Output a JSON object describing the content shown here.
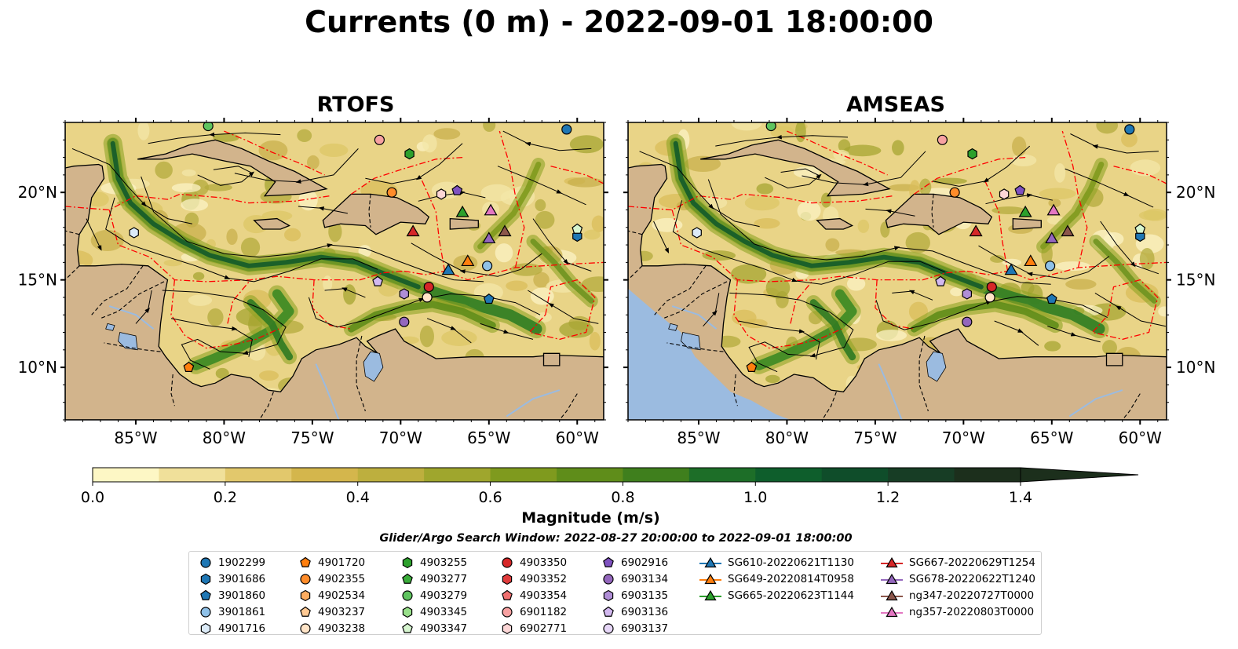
{
  "title": "Currents (0 m) - 2022-09-01 18:00:00",
  "panels": [
    {
      "title": "RTOFS",
      "lon_ticks": [
        "85°W",
        "80°W",
        "75°W",
        "70°W",
        "65°W",
        "60°W"
      ],
      "lat_ticks": [
        "20°N",
        "15°N",
        "10°N"
      ]
    },
    {
      "title": "AMSEAS",
      "lon_ticks": [
        "85°W",
        "80°W",
        "75°W",
        "70°W",
        "65°W",
        "60°W"
      ],
      "lat_ticks": [
        "20°N",
        "15°N",
        "10°N"
      ]
    }
  ],
  "colorbar": {
    "label": "Magnitude (m/s)",
    "ticks": [
      "0.0",
      "0.2",
      "0.4",
      "0.6",
      "0.8",
      "1.0",
      "1.2",
      "1.4"
    ],
    "colors": [
      "#fdf7c5",
      "#f0e09a",
      "#e2c86c",
      "#d4b64c",
      "#bdaf3e",
      "#9fa62d",
      "#7f9a1e",
      "#5f8d1a",
      "#3f7f1d",
      "#1d6e28",
      "#0e5e2c",
      "#0f4d2a",
      "#173d25",
      "#1c2f1c"
    ]
  },
  "search_window": "Glider/Argo Search Window: 2022-08-27 20:00:00 to 2022-09-01 18:00:00",
  "legend": [
    {
      "label": "1902299",
      "shape": "circle",
      "color": "#1f77b4"
    },
    {
      "label": "3901686",
      "shape": "hexagon",
      "color": "#1f77b4"
    },
    {
      "label": "3901860",
      "shape": "pentagon",
      "color": "#1f77b4"
    },
    {
      "label": "3901861",
      "shape": "circle",
      "color": "#8fc1e8"
    },
    {
      "label": "4901716",
      "shape": "hexagon",
      "color": "#dcebf8"
    },
    {
      "label": "4901720",
      "shape": "pentagon",
      "color": "#ff7f0e"
    },
    {
      "label": "4902355",
      "shape": "circle",
      "color": "#ff8c2a"
    },
    {
      "label": "4902534",
      "shape": "hexagon",
      "color": "#ffad60"
    },
    {
      "label": "4903237",
      "shape": "pentagon",
      "color": "#ffc993"
    },
    {
      "label": "4903238",
      "shape": "circle",
      "color": "#ffe4c7"
    },
    {
      "label": "4903255",
      "shape": "hexagon",
      "color": "#2ca02c"
    },
    {
      "label": "4903277",
      "shape": "pentagon",
      "color": "#3aac3a"
    },
    {
      "label": "4903279",
      "shape": "circle",
      "color": "#5fc45f"
    },
    {
      "label": "4903345",
      "shape": "hexagon",
      "color": "#98df8a"
    },
    {
      "label": "4903347",
      "shape": "pentagon",
      "color": "#d6f5cf"
    },
    {
      "label": "4903350",
      "shape": "circle",
      "color": "#d62728"
    },
    {
      "label": "4903352",
      "shape": "hexagon",
      "color": "#e03b3b"
    },
    {
      "label": "4903354",
      "shape": "pentagon",
      "color": "#f07070"
    },
    {
      "label": "6901182",
      "shape": "circle",
      "color": "#f7a1a1"
    },
    {
      "label": "6902771",
      "shape": "hexagon",
      "color": "#fcd6d6"
    },
    {
      "label": "6902916",
      "shape": "pentagon",
      "color": "#7f52c0"
    },
    {
      "label": "6903134",
      "shape": "circle",
      "color": "#9467bd"
    },
    {
      "label": "6903135",
      "shape": "hexagon",
      "color": "#b08ed6"
    },
    {
      "label": "6903136",
      "shape": "pentagon",
      "color": "#d2b8ef"
    },
    {
      "label": "6903137",
      "shape": "circle",
      "color": "#e6d6f7"
    },
    {
      "label": "SG610-20220621T1130",
      "shape": "triangle-line",
      "color": "#1f77b4"
    },
    {
      "label": "SG649-20220814T0958",
      "shape": "triangle-line",
      "color": "#ff7f0e"
    },
    {
      "label": "SG665-20220623T1144",
      "shape": "triangle-line",
      "color": "#2ca02c"
    },
    {
      "label": "SG667-20220629T1254",
      "shape": "triangle-line",
      "color": "#d62728"
    },
    {
      "label": "SG678-20220622T1240",
      "shape": "triangle-line",
      "color": "#9467bd"
    },
    {
      "label": "ng347-20220727T0000",
      "shape": "triangle-line",
      "color": "#8c564b"
    },
    {
      "label": "ng357-20220803T0000",
      "shape": "triangle-line",
      "color": "#e377c2"
    }
  ],
  "markers": [
    {
      "id": "1902299",
      "lon": -60.6,
      "lat": 23.6
    },
    {
      "id": "3901686",
      "lon": -60.0,
      "lat": 17.5
    },
    {
      "id": "3901860",
      "lon": -65.0,
      "lat": 13.9
    },
    {
      "id": "3901861",
      "lon": -65.1,
      "lat": 15.8
    },
    {
      "id": "4901716",
      "lon": -85.1,
      "lat": 17.7
    },
    {
      "id": "4901720",
      "lon": -82.0,
      "lat": 10.0
    },
    {
      "id": "4902355",
      "lon": -70.5,
      "lat": 20.0
    },
    {
      "id": "4903238",
      "lon": -68.5,
      "lat": 14.0
    },
    {
      "id": "4903255",
      "lon": -69.5,
      "lat": 22.2
    },
    {
      "id": "4903279",
      "lon": -80.9,
      "lat": 23.8
    },
    {
      "id": "4903347",
      "lon": -60.0,
      "lat": 17.9
    },
    {
      "id": "4903350",
      "lon": -68.4,
      "lat": 14.6
    },
    {
      "id": "6901182",
      "lon": -71.2,
      "lat": 23.0
    },
    {
      "id": "6902771",
      "lon": -67.7,
      "lat": 19.9
    },
    {
      "id": "6902916",
      "lon": -66.8,
      "lat": 20.1
    },
    {
      "id": "6903134",
      "lon": -69.8,
      "lat": 12.6
    },
    {
      "id": "6903135",
      "lon": -69.8,
      "lat": 14.2
    },
    {
      "id": "6903136",
      "lon": -71.3,
      "lat": 14.9
    },
    {
      "id": "SG610-20220621T1130",
      "lon": -67.3,
      "lat": 15.6
    },
    {
      "id": "SG649-20220814T0958",
      "lon": -66.2,
      "lat": 16.1
    },
    {
      "id": "SG665-20220623T1144",
      "lon": -66.5,
      "lat": 18.9
    },
    {
      "id": "SG667-20220629T1254",
      "lon": -69.3,
      "lat": 17.8
    },
    {
      "id": "SG678-20220622T1240",
      "lon": -65.0,
      "lat": 17.4
    },
    {
      "id": "ng347-20220727T0000",
      "lon": -64.1,
      "lat": 17.8
    },
    {
      "id": "ng357-20220803T0000",
      "lon": -64.9,
      "lat": 19.0
    }
  ],
  "map": {
    "lon_range": [
      -89,
      -58.5
    ],
    "lat_range": [
      7,
      24
    ],
    "land_color": "#d2b48c",
    "lake_color": "#9bbbe0",
    "ocean_mask_color": "#9bbbe0",
    "eez_line_color": "#ff0000"
  }
}
